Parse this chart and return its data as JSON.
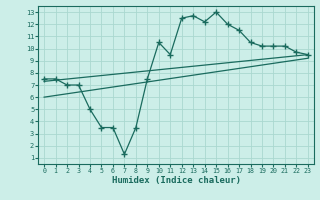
{
  "xlabel": "Humidex (Indice chaleur)",
  "bg_color": "#cceee8",
  "line_color": "#1a6b5e",
  "grid_color": "#aad8d0",
  "xlim": [
    -0.5,
    23.5
  ],
  "ylim": [
    0.5,
    13.5
  ],
  "xticks": [
    0,
    1,
    2,
    3,
    4,
    5,
    6,
    7,
    8,
    9,
    10,
    11,
    12,
    13,
    14,
    15,
    16,
    17,
    18,
    19,
    20,
    21,
    22,
    23
  ],
  "yticks": [
    1,
    2,
    3,
    4,
    5,
    6,
    7,
    8,
    9,
    10,
    11,
    12,
    13
  ],
  "line1_x": [
    0,
    1,
    2,
    3,
    4,
    5,
    6,
    7,
    8,
    9,
    10,
    11,
    12,
    13,
    14,
    15,
    16,
    17,
    18,
    19,
    20,
    21,
    22,
    23
  ],
  "line1_y": [
    7.5,
    7.5,
    7.0,
    7.0,
    5.0,
    3.5,
    3.5,
    1.3,
    3.5,
    7.5,
    10.5,
    9.5,
    12.5,
    12.7,
    12.2,
    13.0,
    12.0,
    11.5,
    10.5,
    10.2,
    10.2,
    10.2,
    9.7,
    9.5
  ],
  "line2_x": [
    0,
    23
  ],
  "line2_y": [
    7.3,
    9.5
  ],
  "line3_x": [
    0,
    23
  ],
  "line3_y": [
    6.0,
    9.2
  ]
}
